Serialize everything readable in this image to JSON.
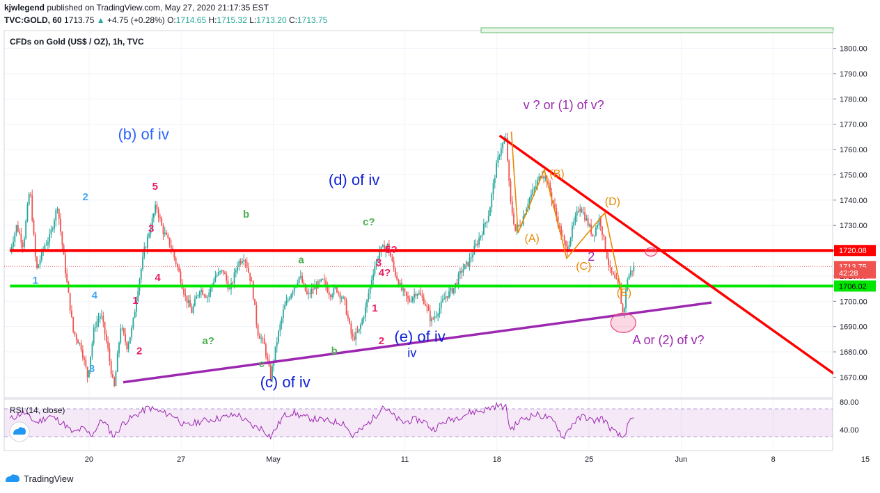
{
  "header": {
    "author": "kjwlegend",
    "published_text": "published on TradingView.com, May 27, 2020 21:17:35 EST",
    "symbol": "TVC:GOLD, 60",
    "last": "1713.75",
    "change": "+4.75 (+0.28%)",
    "open_label": "O:",
    "open": "1714.65",
    "high_label": "H:",
    "high": "1715.32",
    "low_label": "L:",
    "low": "1713.20",
    "close_label": "C:",
    "close": "1713.75"
  },
  "chart_title": "CFDs on Gold (US$ / OZ), 1h, TVC",
  "price_axis": {
    "ticks": [
      "1800.00",
      "1790.00",
      "1780.00",
      "1770.00",
      "1760.00",
      "1750.00",
      "1740.00",
      "1730.00",
      "1720.00",
      "1710.00",
      "1700.00",
      "1690.00",
      "1680.00",
      "1670.00"
    ],
    "tick_values": [
      1800,
      1790,
      1780,
      1770,
      1760,
      1750,
      1740,
      1730,
      1720,
      1710,
      1700,
      1690,
      1680,
      1670
    ]
  },
  "price_labels": [
    {
      "text": "1720.08",
      "value": 1720.08,
      "bg": "#ff0000",
      "fg": "#ffffff"
    },
    {
      "text": "1713.75",
      "value": 1713.75,
      "bg": "#ef5350",
      "fg": "#ffffff"
    },
    {
      "text": "42:28",
      "value": 1711.2,
      "bg": "#ef5350",
      "fg": "#ffffff"
    },
    {
      "text": "1706.02",
      "value": 1706.02,
      "bg": "#00e600",
      "fg": "#000000"
    }
  ],
  "time_axis": [
    {
      "text": "20",
      "t": 20
    },
    {
      "text": "27",
      "t": 27
    },
    {
      "text": "May",
      "t": 34
    },
    {
      "text": "11",
      "t": 44
    },
    {
      "text": "18",
      "t": 51
    },
    {
      "text": "25",
      "t": 58
    },
    {
      "text": "Jun",
      "t": 65
    },
    {
      "text": "8",
      "t": 72
    },
    {
      "text": "15",
      "t": 79
    }
  ],
  "rsi": {
    "label": "RSI (14, close)",
    "ticks": [
      "80.00",
      "40.00"
    ],
    "tick_values": [
      80,
      40
    ],
    "upper_band": 70,
    "lower_band": 30,
    "line_color": "#9c27b0"
  },
  "colors": {
    "red_line": "#ff0000",
    "green_line": "#00e600",
    "purple_line": "#9c27b0",
    "up": "#26a69a",
    "down": "#ef5350",
    "orange": "#e68a00",
    "grid": "#f0f3fa"
  },
  "chart_data": {
    "type": "candlestick",
    "title": "CFDs on Gold (US$ / OZ), 1h, TVC",
    "x_unit": "days from Apr 1 2020 (axis labels: 20, 27, May, 11, 18, 25, Jun, 8, 15)",
    "ylim": [
      1665,
      1810
    ],
    "price_path": [
      [
        14,
        1720
      ],
      [
        14.5,
        1730
      ],
      [
        15,
        1722
      ],
      [
        15.5,
        1745
      ],
      [
        16,
        1712
      ],
      [
        16.6,
        1722
      ],
      [
        17,
        1725
      ],
      [
        17.6,
        1738
      ],
      [
        18.2,
        1712
      ],
      [
        18.8,
        1688
      ],
      [
        19.4,
        1682
      ],
      [
        19.9,
        1670
      ],
      [
        20.4,
        1690
      ],
      [
        20.9,
        1695
      ],
      [
        21.4,
        1682
      ],
      [
        21.9,
        1665
      ],
      [
        22.4,
        1690
      ],
      [
        22.9,
        1682
      ],
      [
        23.3,
        1690
      ],
      [
        23.7,
        1705
      ],
      [
        24.2,
        1720
      ],
      [
        24.7,
        1730
      ],
      [
        25.1,
        1738
      ],
      [
        25.6,
        1728
      ],
      [
        26.2,
        1722
      ],
      [
        26.8,
        1712
      ],
      [
        27.3,
        1702
      ],
      [
        27.8,
        1696
      ],
      [
        28.4,
        1705
      ],
      [
        29.0,
        1702
      ],
      [
        29.6,
        1710
      ],
      [
        30.2,
        1712
      ],
      [
        30.7,
        1704
      ],
      [
        31.3,
        1715
      ],
      [
        31.8,
        1718
      ],
      [
        32.4,
        1706
      ],
      [
        32.8,
        1688
      ],
      [
        33.3,
        1683
      ],
      [
        33.8,
        1670
      ],
      [
        34.3,
        1685
      ],
      [
        34.8,
        1697
      ],
      [
        35.4,
        1704
      ],
      [
        36.0,
        1710
      ],
      [
        36.6,
        1702
      ],
      [
        37.2,
        1706
      ],
      [
        37.8,
        1708
      ],
      [
        38.3,
        1703
      ],
      [
        38.8,
        1705
      ],
      [
        39.4,
        1700
      ],
      [
        40.0,
        1685
      ],
      [
        40.5,
        1688
      ],
      [
        41.0,
        1697
      ],
      [
        41.6,
        1712
      ],
      [
        42.1,
        1720
      ],
      [
        42.7,
        1722
      ],
      [
        43.2,
        1712
      ],
      [
        43.7,
        1705
      ],
      [
        44.3,
        1700
      ],
      [
        44.9,
        1704
      ],
      [
        45.5,
        1700
      ],
      [
        46.0,
        1692
      ],
      [
        46.6,
        1697
      ],
      [
        47.1,
        1702
      ],
      [
        47.7,
        1705
      ],
      [
        48.3,
        1712
      ],
      [
        48.8,
        1715
      ],
      [
        49.4,
        1722
      ],
      [
        49.9,
        1728
      ],
      [
        50.4,
        1735
      ],
      [
        50.9,
        1752
      ],
      [
        51.3,
        1761
      ],
      [
        51.7,
        1764
      ],
      [
        52.0,
        1740
      ],
      [
        52.4,
        1728
      ],
      [
        52.9,
        1732
      ],
      [
        53.4,
        1740
      ],
      [
        53.9,
        1745
      ],
      [
        54.4,
        1751
      ],
      [
        54.8,
        1748
      ],
      [
        55.3,
        1738
      ],
      [
        55.8,
        1728
      ],
      [
        56.3,
        1720
      ],
      [
        56.8,
        1730
      ],
      [
        57.3,
        1738
      ],
      [
        57.8,
        1732
      ],
      [
        58.3,
        1726
      ],
      [
        58.8,
        1733
      ],
      [
        59.2,
        1722
      ],
      [
        59.6,
        1712
      ],
      [
        60.0,
        1708
      ],
      [
        60.3,
        1705
      ],
      [
        60.6,
        1694
      ],
      [
        60.9,
        1709
      ],
      [
        61.2,
        1712
      ],
      [
        61.5,
        1714
      ]
    ],
    "rsi_path": [
      [
        14,
        55
      ],
      [
        15,
        65
      ],
      [
        16,
        50
      ],
      [
        17,
        60
      ],
      [
        18,
        50
      ],
      [
        18.8,
        35
      ],
      [
        19.5,
        42
      ],
      [
        20.2,
        32
      ],
      [
        21,
        55
      ],
      [
        21.9,
        30
      ],
      [
        22.6,
        50
      ],
      [
        23.5,
        60
      ],
      [
        24.5,
        72
      ],
      [
        25.5,
        65
      ],
      [
        26.5,
        60
      ],
      [
        27.3,
        45
      ],
      [
        28.4,
        52
      ],
      [
        29.4,
        55
      ],
      [
        30.3,
        58
      ],
      [
        31.3,
        62
      ],
      [
        32.4,
        45
      ],
      [
        33.1,
        42
      ],
      [
        33.8,
        30
      ],
      [
        34.8,
        60
      ],
      [
        35.5,
        65
      ],
      [
        36.3,
        58
      ],
      [
        37.3,
        55
      ],
      [
        38.3,
        52
      ],
      [
        39.4,
        50
      ],
      [
        40.0,
        30
      ],
      [
        40.8,
        42
      ],
      [
        41.8,
        60
      ],
      [
        42.3,
        75
      ],
      [
        43.0,
        62
      ],
      [
        43.8,
        50
      ],
      [
        44.8,
        55
      ],
      [
        45.5,
        52
      ],
      [
        46.1,
        40
      ],
      [
        47.1,
        52
      ],
      [
        48.0,
        58
      ],
      [
        49.0,
        65
      ],
      [
        50.0,
        68
      ],
      [
        51.0,
        75
      ],
      [
        51.7,
        72
      ],
      [
        52.0,
        40
      ],
      [
        52.9,
        55
      ],
      [
        53.9,
        62
      ],
      [
        54.8,
        58
      ],
      [
        55.5,
        48
      ],
      [
        56.0,
        28
      ],
      [
        56.8,
        50
      ],
      [
        57.6,
        60
      ],
      [
        58.3,
        52
      ],
      [
        59.0,
        57
      ],
      [
        59.5,
        45
      ],
      [
        60.0,
        35
      ],
      [
        60.6,
        28
      ],
      [
        61.0,
        48
      ],
      [
        61.5,
        58
      ]
    ],
    "lines": [
      {
        "name": "red_horizontal",
        "points": [
          [
            14,
            1720.08
          ],
          [
            79,
            1720.08
          ]
        ],
        "color": "#ff0000"
      },
      {
        "name": "green_horizontal",
        "points": [
          [
            14,
            1706.02
          ],
          [
            79,
            1706.02
          ]
        ],
        "color": "#00e600"
      },
      {
        "name": "red_downtrend",
        "points": [
          [
            51.2,
            1765.5
          ],
          [
            79,
            1662.5
          ]
        ],
        "color": "#ff0000"
      },
      {
        "name": "purple_uptrend",
        "points": [
          [
            22.6,
            1668
          ],
          [
            67.3,
            1699.5
          ]
        ],
        "color": "#9c27b0"
      },
      {
        "name": "orange_wave",
        "points": [
          [
            52.1,
            1767
          ],
          [
            52.6,
            1727
          ],
          [
            54.6,
            1752
          ],
          [
            56.3,
            1717
          ],
          [
            59.2,
            1735
          ],
          [
            60.5,
            1703
          ]
        ],
        "color": "#e68a00"
      }
    ],
    "annotations": [
      {
        "text": "(b) of iv",
        "t": 22.2,
        "y": 1764,
        "color": "#2962ff",
        "size": 22
      },
      {
        "text": "(d) of iv",
        "t": 38.2,
        "y": 1746,
        "color": "#0d1fd6",
        "size": 22
      },
      {
        "text": "(e) of iv",
        "t": 43.2,
        "y": 1684,
        "color": "#0d1fd6",
        "size": 22
      },
      {
        "text": "iv",
        "t": 44.2,
        "y": 1678,
        "color": "#0d1fd6",
        "size": 18
      },
      {
        "text": "(c) of iv",
        "t": 33.0,
        "y": 1666,
        "color": "#0d1fd6",
        "size": 22
      },
      {
        "text": "v ? or (1) of v?",
        "t": 53.0,
        "y": 1776,
        "color": "#9c27b0",
        "size": 18
      },
      {
        "text": "A or (2) of v?",
        "t": 61.3,
        "y": 1683,
        "color": "#9c27b0",
        "size": 18
      },
      {
        "text": "(A)",
        "t": 53.1,
        "y": 1723.5,
        "color": "#e68a00",
        "size": 16
      },
      {
        "text": "(B)",
        "t": 55.0,
        "y": 1749,
        "color": "#e68a00",
        "size": 16
      },
      {
        "text": "(C)",
        "t": 57.0,
        "y": 1712.5,
        "color": "#e68a00",
        "size": 16
      },
      {
        "text": "(D)",
        "t": 59.2,
        "y": 1738,
        "color": "#e68a00",
        "size": 16
      },
      {
        "text": "(E)",
        "t": 60.1,
        "y": 1702,
        "color": "#e68a00",
        "size": 16
      },
      {
        "text": "2",
        "t": 57.9,
        "y": 1716,
        "color": "#9c27b0",
        "size": 18
      },
      {
        "text": "5",
        "t": 24.8,
        "y": 1744,
        "color": "#e91e63",
        "size": 15
      },
      {
        "text": "3",
        "t": 24.5,
        "y": 1727.5,
        "color": "#e91e63",
        "size": 15
      },
      {
        "text": "4",
        "t": 25.0,
        "y": 1708,
        "color": "#e91e63",
        "size": 15
      },
      {
        "text": "1",
        "t": 23.3,
        "y": 1699,
        "color": "#e91e63",
        "size": 15
      },
      {
        "text": "2",
        "t": 23.6,
        "y": 1679,
        "color": "#e91e63",
        "size": 15
      },
      {
        "text": "3",
        "t": 41.8,
        "y": 1714,
        "color": "#e91e63",
        "size": 15
      },
      {
        "text": "5?",
        "t": 42.5,
        "y": 1719,
        "color": "#e91e63",
        "size": 15
      },
      {
        "text": "4?",
        "t": 42.0,
        "y": 1710,
        "color": "#e91e63",
        "size": 15
      },
      {
        "text": "1",
        "t": 41.5,
        "y": 1696,
        "color": "#e91e63",
        "size": 15
      },
      {
        "text": "2",
        "t": 42.0,
        "y": 1683,
        "color": "#e91e63",
        "size": 15
      },
      {
        "text": "2",
        "t": 19.5,
        "y": 1740,
        "color": "#42a5f5",
        "size": 15
      },
      {
        "text": "1",
        "t": 15.7,
        "y": 1707,
        "color": "#42a5f5",
        "size": 15
      },
      {
        "text": "4",
        "t": 20.2,
        "y": 1701,
        "color": "#42a5f5",
        "size": 15
      },
      {
        "text": "3",
        "t": 20.0,
        "y": 1672,
        "color": "#42a5f5",
        "size": 15
      },
      {
        "text": "b",
        "t": 31.7,
        "y": 1733,
        "color": "#4caf50",
        "size": 15
      },
      {
        "text": "a",
        "t": 35.9,
        "y": 1715,
        "color": "#4caf50",
        "size": 15
      },
      {
        "text": "c?",
        "t": 40.8,
        "y": 1730,
        "color": "#4caf50",
        "size": 15
      },
      {
        "text": "a?",
        "t": 28.6,
        "y": 1683,
        "color": "#4caf50",
        "size": 15
      },
      {
        "text": "b",
        "t": 38.4,
        "y": 1679,
        "color": "#4caf50",
        "size": 15
      },
      {
        "text": "c",
        "t": 32.9,
        "y": 1674,
        "color": "#4caf50",
        "size": 15
      }
    ]
  }
}
